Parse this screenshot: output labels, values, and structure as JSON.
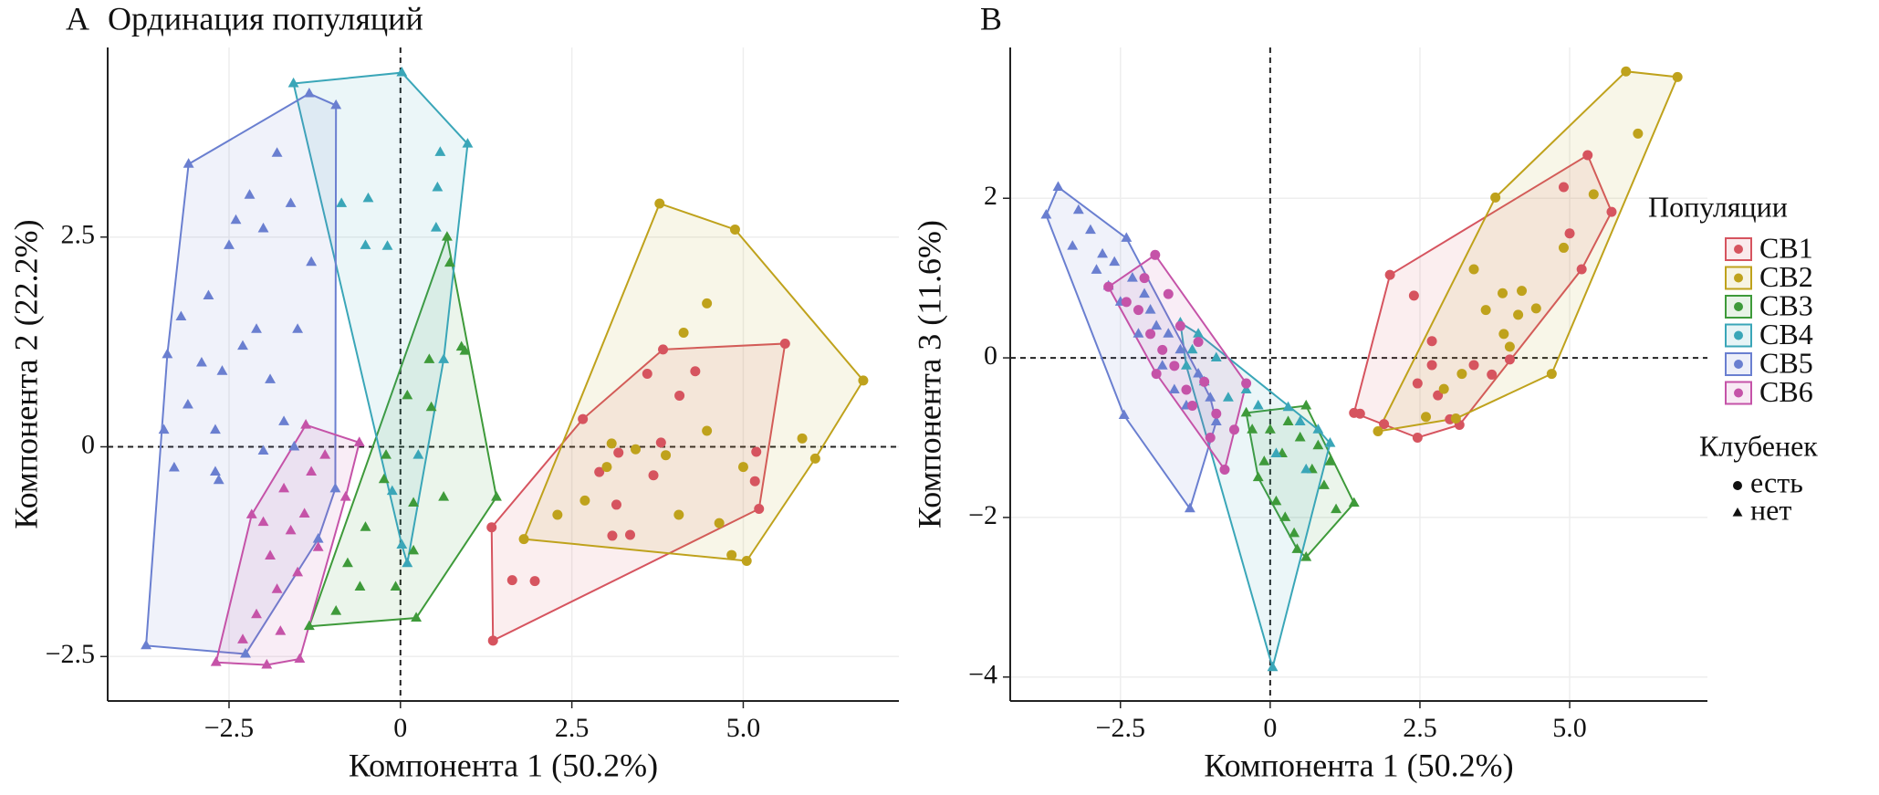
{
  "chart_data": [
    {
      "type": "scatter",
      "panel": "A",
      "title": "Ординация популяций",
      "xlabel": "Компонента 1 (50.2%)",
      "ylabel": "Компонента 2 (22.2%)",
      "xlim": [
        -4.27,
        7.27
      ],
      "ylim": [
        -3.03,
        4.76
      ],
      "xticks": [
        {
          "value": -2.5,
          "label": "−2.5"
        },
        0,
        2.5,
        {
          "value": 5,
          "label": "5.0"
        }
      ],
      "yticks": [
        {
          "value": -2.5,
          "label": "−2.5"
        },
        0,
        2.5
      ],
      "hlines": [
        0
      ],
      "vlines": [
        0
      ],
      "grid": true,
      "hulls": true,
      "series": [
        {
          "color": "#d6545f",
          "marker": "circle",
          "x": [
            1.33,
            1.35,
            1.63,
            1.96,
            2.66,
            3.18,
            3.6,
            3.69,
            3.83,
            4.07,
            3.15,
            3.09,
            3.35,
            3.8,
            5.19,
            5.23,
            5.17,
            5.61,
            4.3,
            2.9
          ],
          "values": [
            -0.96,
            -2.31,
            -1.59,
            -1.6,
            0.33,
            -0.07,
            0.87,
            -0.34,
            1.16,
            0.61,
            -0.69,
            -1.06,
            -1.05,
            0.05,
            -0.06,
            -0.74,
            -0.41,
            1.23,
            0.9,
            -0.3
          ]
        },
        {
          "color": "#bfa21c",
          "marker": "circle",
          "x": [
            1.8,
            3.78,
            4.88,
            6.75,
            5.05,
            4.47,
            4.13,
            2.29,
            2.69,
            3.01,
            3.08,
            3.43,
            3.87,
            4.06,
            4.65,
            4.83,
            5.86,
            6.05,
            4.47,
            5.0
          ],
          "values": [
            -1.1,
            2.9,
            2.59,
            0.79,
            -1.36,
            1.71,
            1.36,
            -0.81,
            -0.64,
            -0.24,
            0.04,
            -0.03,
            -0.1,
            -0.81,
            -0.91,
            -1.29,
            0.1,
            -0.14,
            0.19,
            -0.24
          ]
        },
        {
          "color": "#3e9a3a",
          "marker": "triangle",
          "x": [
            0.68,
            1.4,
            0.23,
            -1.33,
            0.72,
            0.89,
            0.94,
            0.1,
            0.45,
            -0.21,
            -0.24,
            0.19,
            0.63,
            -0.51,
            -0.77,
            -0.59,
            -0.07,
            0.19,
            -0.94,
            0.42
          ],
          "values": [
            2.5,
            -0.6,
            -2.04,
            -2.14,
            2.19,
            1.19,
            1.14,
            0.61,
            0.47,
            -0.1,
            -0.39,
            -0.67,
            -0.6,
            -0.96,
            -1.39,
            -1.67,
            -1.67,
            -1.24,
            -1.96,
            1.04
          ]
        },
        {
          "color": "#3aa6b8",
          "marker": "triangle",
          "x": [
            -1.56,
            0.02,
            0.98,
            0.1,
            -0.47,
            -0.19,
            -0.51,
            0.54,
            0.58,
            0.63,
            0.26,
            -0.12,
            0.02,
            0.52,
            -0.86
          ],
          "values": [
            4.33,
            4.46,
            3.61,
            -1.39,
            2.96,
            2.39,
            2.4,
            3.09,
            3.51,
            1.04,
            -0.1,
            -0.53,
            -1.17,
            2.61,
            2.9
          ]
        },
        {
          "color": "#6a7fd0",
          "marker": "triangle",
          "x": [
            -3.71,
            -3.09,
            -1.33,
            -0.94,
            -2.26,
            -3.4,
            -3.2,
            -3.1,
            -2.7,
            -2.65,
            -2.9,
            -2.4,
            -2.2,
            -2.0,
            -1.8,
            -1.6,
            -1.5,
            -1.3,
            -2.5,
            -2.3,
            -2.1,
            -1.9,
            -1.7,
            -2.8,
            -3.3,
            -2.6,
            -2.0,
            -1.55,
            -1.2,
            -0.95,
            -2.7,
            -3.45
          ],
          "values": [
            -2.37,
            3.37,
            4.21,
            4.07,
            -2.47,
            1.1,
            1.55,
            0.5,
            0.2,
            -0.4,
            1.0,
            2.7,
            3.0,
            2.6,
            3.5,
            2.9,
            1.4,
            2.2,
            2.4,
            1.2,
            1.4,
            0.8,
            0.3,
            1.8,
            -0.25,
            0.9,
            -0.05,
            0.0,
            -1.1,
            -0.5,
            -0.3,
            0.2
          ]
        },
        {
          "color": "#c553a8",
          "marker": "triangle",
          "x": [
            -2.69,
            -1.38,
            -0.6,
            -1.47,
            -2.17,
            -1.9,
            -1.8,
            -2.1,
            -1.6,
            -1.7,
            -1.4,
            -2.3,
            -1.5,
            -1.2,
            -1.95,
            -2.0,
            -1.3,
            -1.75,
            -1.1,
            -0.8
          ],
          "values": [
            -2.57,
            0.26,
            0.05,
            -2.53,
            -0.81,
            -1.3,
            -1.7,
            -2.0,
            -1.0,
            -0.5,
            -0.8,
            -2.3,
            -1.5,
            -1.2,
            -2.6,
            -0.9,
            -0.3,
            -2.2,
            -0.1,
            -0.6
          ]
        }
      ]
    },
    {
      "type": "scatter",
      "panel": "B",
      "xlabel": "Компонента 1 (50.2%)",
      "ylabel": "Компонента 3 (11.6%)",
      "xlim": [
        -4.34,
        7.3
      ],
      "ylim": [
        -4.3,
        3.89
      ],
      "xticks": [
        {
          "value": -2.5,
          "label": "−2.5"
        },
        0,
        2.5,
        {
          "value": 5,
          "label": "5.0"
        }
      ],
      "yticks": [
        {
          "value": -4,
          "label": "−4"
        },
        {
          "value": -2,
          "label": "−2"
        },
        0,
        2
      ],
      "hlines": [
        0
      ],
      "vlines": [
        0
      ],
      "grid": true,
      "hulls": true,
      "legend_title": "Популяции",
      "shape_legend": {
        "title": "Клубенек",
        "items": [
          {
            "label": "есть",
            "marker": "circle"
          },
          {
            "label": "нет",
            "marker": "triangle"
          }
        ]
      },
      "series": [
        {
          "name": "СВ1",
          "color": "#d6545f",
          "marker": "circle",
          "x": [
            2.0,
            5.3,
            5.7,
            3.16,
            2.46,
            1.4,
            2.4,
            2.7,
            2.46,
            3.4,
            3.7,
            4.9,
            5.0,
            5.2,
            3.0,
            1.9,
            2.8,
            4.0,
            2.7,
            1.5
          ],
          "values": [
            1.04,
            2.54,
            1.83,
            -0.84,
            -1.0,
            -0.69,
            0.78,
            -0.09,
            -0.32,
            -0.09,
            -0.21,
            2.14,
            1.56,
            1.11,
            -0.77,
            -0.83,
            -0.47,
            -0.02,
            0.21,
            -0.7
          ]
        },
        {
          "name": "СВ2",
          "color": "#bfa21c",
          "marker": "circle",
          "x": [
            5.94,
            6.8,
            4.7,
            1.8,
            3.76,
            6.14,
            5.4,
            4.9,
            3.6,
            4.14,
            4.44,
            3.4,
            4.0,
            2.6,
            3.2,
            2.9,
            4.2,
            3.88,
            3.1,
            3.9
          ],
          "values": [
            3.59,
            3.52,
            -0.2,
            -0.92,
            2.01,
            2.81,
            2.05,
            1.38,
            0.6,
            0.54,
            0.62,
            1.11,
            0.14,
            -0.74,
            -0.2,
            -0.39,
            0.84,
            0.81,
            -0.76,
            0.3
          ]
        },
        {
          "name": "СВ3",
          "color": "#3e9a3a",
          "marker": "triangle",
          "x": [
            -0.4,
            1.4,
            0.6,
            0.45,
            -0.2,
            0.0,
            0.2,
            0.3,
            0.5,
            0.7,
            0.9,
            1.1,
            0.4,
            0.1,
            -0.3,
            0.8,
            0.6,
            1.0,
            0.25,
            -0.1
          ],
          "values": [
            -0.69,
            -1.82,
            -2.5,
            -2.4,
            -1.5,
            -0.9,
            -1.2,
            -0.8,
            -1.0,
            -1.4,
            -1.6,
            -1.9,
            -2.2,
            -1.8,
            -0.9,
            -1.1,
            -0.6,
            -1.3,
            -2.0,
            -1.3
          ]
        },
        {
          "name": "СВ4",
          "color": "#3aa6b8",
          "marker": "triangle",
          "x": [
            -1.5,
            0.04,
            1.0,
            0.3,
            -1.3,
            -1.1,
            -0.7,
            -0.2,
            0.5,
            0.8,
            -0.9,
            -0.4,
            0.1,
            0.6,
            -1.4,
            -1.2
          ],
          "values": [
            0.44,
            -3.88,
            -1.07,
            -0.62,
            0.1,
            -0.3,
            -0.5,
            -0.6,
            -0.8,
            -0.9,
            0.0,
            -0.4,
            -1.2,
            -1.4,
            -0.1,
            0.3
          ]
        },
        {
          "name": "СВ5",
          "color": "#6a7fd0",
          "marker": "triangle",
          "x": [
            -3.54,
            -3.74,
            -2.44,
            -1.34,
            -3.2,
            -3.0,
            -2.8,
            -2.9,
            -2.6,
            -2.7,
            -2.3,
            -2.1,
            -2.0,
            -1.9,
            -1.7,
            -1.5,
            -1.2,
            -1.0,
            -2.5,
            -3.3,
            -2.2,
            -1.8,
            -1.6,
            -0.9,
            -2.4,
            -1.4
          ],
          "values": [
            2.14,
            1.79,
            -0.72,
            -1.89,
            1.85,
            1.6,
            1.3,
            1.1,
            1.2,
            0.9,
            1.0,
            0.8,
            0.6,
            0.4,
            0.3,
            0.1,
            -0.2,
            -0.5,
            0.7,
            1.4,
            0.3,
            -0.1,
            -0.4,
            -0.8,
            1.5,
            -0.6
          ]
        },
        {
          "name": "СВ6",
          "color": "#c553a8",
          "marker": "circle",
          "x": [
            -1.92,
            -0.4,
            -0.76,
            -2.7,
            -2.2,
            -2.0,
            -1.8,
            -1.6,
            -1.4,
            -1.3,
            -1.1,
            -0.9,
            -1.5,
            -1.7,
            -2.4,
            -1.2,
            -0.6,
            -1.0,
            -1.9,
            -2.1
          ],
          "values": [
            1.29,
            -0.32,
            -1.4,
            0.89,
            0.6,
            0.3,
            0.1,
            -0.1,
            -0.4,
            -0.6,
            -0.3,
            -0.7,
            0.4,
            0.8,
            0.7,
            0.2,
            -0.9,
            -1.0,
            -0.2,
            1.0
          ]
        }
      ]
    }
  ]
}
